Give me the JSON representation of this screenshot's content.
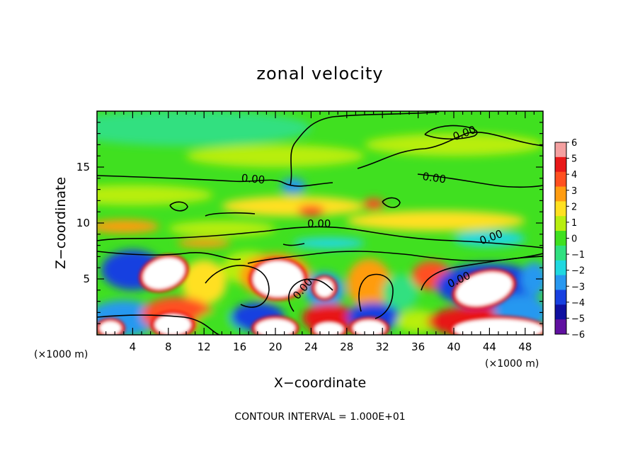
{
  "chart_data": {
    "type": "heatmap",
    "title": "zonal velocity",
    "xlabel": "X−coordinate",
    "ylabel": "Z−coordinate",
    "xlim": [
      0,
      50
    ],
    "ylim": [
      0,
      20
    ],
    "x_ticks": [
      4,
      8,
      12,
      16,
      20,
      24,
      28,
      32,
      36,
      40,
      44,
      48
    ],
    "y_ticks": [
      5,
      10,
      15
    ],
    "x_unit_left": "(×1000 m)",
    "x_unit_right": "(×1000 m)",
    "colorbar": {
      "ticks": [
        "6",
        "5",
        "4",
        "3",
        "2",
        "1",
        "0",
        "−1",
        "−2",
        "−3",
        "−4",
        "−5",
        "−6"
      ],
      "levels": [
        {
          "from": 5,
          "to": 6,
          "color": "#f4a0a0"
        },
        {
          "from": 4,
          "to": 5,
          "color": "#e81818"
        },
        {
          "from": 3,
          "to": 4,
          "color": "#ff5020"
        },
        {
          "from": 2,
          "to": 3,
          "color": "#ff9c10"
        },
        {
          "from": 1,
          "to": 2,
          "color": "#ffe020"
        },
        {
          "from": 0,
          "to": 1,
          "color": "#b8ee10"
        },
        {
          "from": -1,
          "to": 0,
          "color": "#40e020"
        },
        {
          "from": -2,
          "to": -1,
          "color": "#30e080"
        },
        {
          "from": -3,
          "to": -2,
          "color": "#20d8e0"
        },
        {
          "from": -4,
          "to": -3,
          "color": "#2898f0"
        },
        {
          "from": -5,
          "to": -4,
          "color": "#1840e0"
        },
        {
          "from": -6,
          "to": -5,
          "color": "#1010a0"
        },
        {
          "from": -7,
          "to": -6,
          "color": "#6010a0"
        }
      ]
    },
    "contour_labels": [
      {
        "text": "0.00",
        "x": 41.2,
        "z": 18.0,
        "angle": -20
      },
      {
        "text": "0.00",
        "x": 17.5,
        "z": 13.9,
        "angle": 5
      },
      {
        "text": "0.00",
        "x": 37.8,
        "z": 14.0,
        "angle": 8
      },
      {
        "text": "0.00",
        "x": 24.9,
        "z": 9.9,
        "angle": 0
      },
      {
        "text": "0.00",
        "x": 44.2,
        "z": 8.7,
        "angle": -20
      },
      {
        "text": "0.00",
        "x": 40.6,
        "z": 4.9,
        "angle": -25
      },
      {
        "text": "0.00",
        "x": 23.1,
        "z": 4.1,
        "angle": -50
      }
    ],
    "footer": "CONTOUR INTERVAL = 1.000E+01"
  }
}
